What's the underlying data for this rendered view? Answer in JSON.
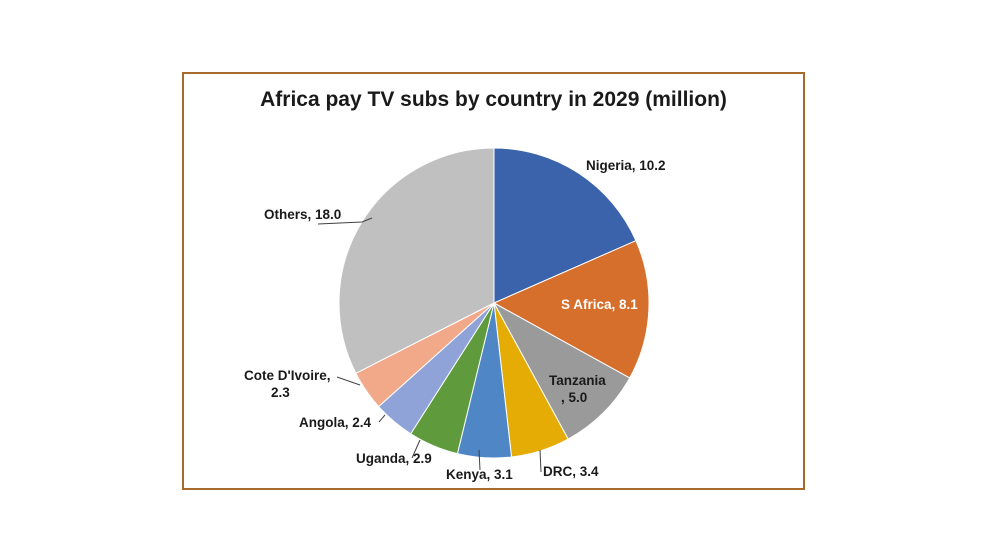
{
  "chart_data": {
    "type": "pie",
    "title": "Africa pay TV subs by country in 2029 (million)",
    "slices": [
      {
        "label": "Nigeria, 10.2",
        "value": 10.2,
        "color": "#3a63ac"
      },
      {
        "label": "S Africa, 8.1",
        "value": 8.1,
        "color": "#d66e2c"
      },
      {
        "label": "Tanzania\n, 5.0",
        "value": 5.0,
        "color": "#9a9a9a"
      },
      {
        "label": "DRC, 3.4",
        "value": 3.4,
        "color": "#e5ac05"
      },
      {
        "label": "Kenya, 3.1",
        "value": 3.1,
        "color": "#4f86c6"
      },
      {
        "label": "Uganda, 2.9",
        "value": 2.9,
        "color": "#5f9a3d"
      },
      {
        "label": "Angola, 2.4",
        "value": 2.4,
        "color": "#8fa3d8"
      },
      {
        "label": "Cote D'Ivoire,\n2.3",
        "value": 2.3,
        "color": "#f2a98a"
      },
      {
        "label": "Others, 18.0",
        "value": 18.0,
        "color": "#c0c0c0"
      }
    ]
  }
}
